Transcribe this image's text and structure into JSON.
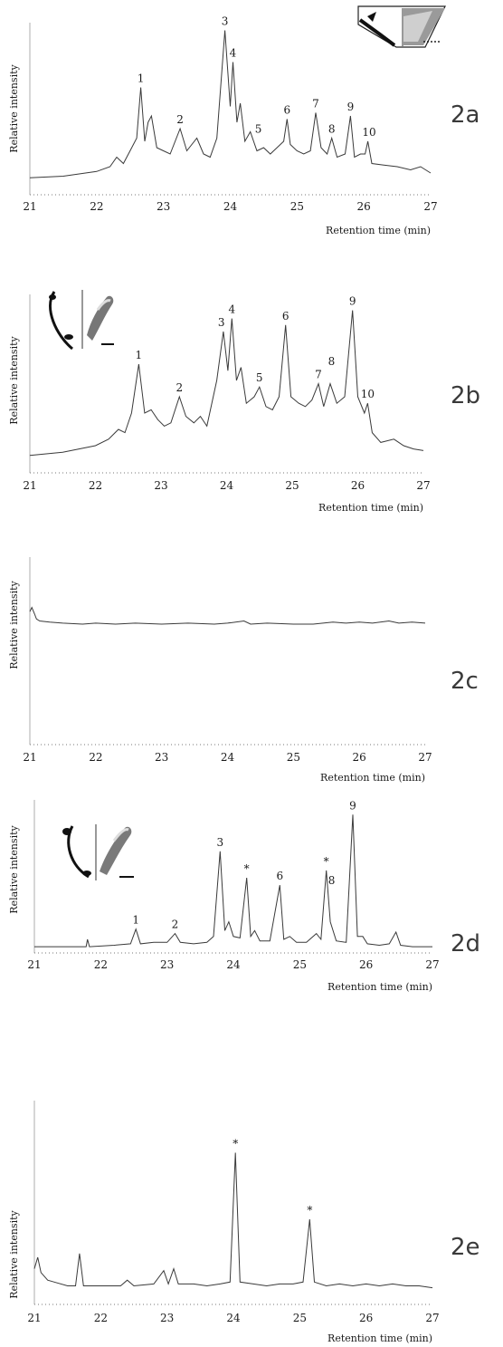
{
  "chart_data": [
    {
      "type": "line",
      "panel_label": "2a",
      "xlabel": "Retention time (min)",
      "ylabel": "Relative intensity",
      "xlim": [
        21,
        27
      ],
      "xticks": [
        "21",
        "22",
        "23",
        "24",
        "25",
        "26",
        "27"
      ],
      "series": [
        {
          "points": [
            [
              21.0,
              0.05
            ],
            [
              21.5,
              0.06
            ],
            [
              22.0,
              0.09
            ],
            [
              22.2,
              0.12
            ],
            [
              22.3,
              0.18
            ],
            [
              22.4,
              0.14
            ],
            [
              22.5,
              0.22
            ],
            [
              22.6,
              0.3
            ],
            [
              22.66,
              0.62
            ],
            [
              22.72,
              0.28
            ],
            [
              22.77,
              0.4
            ],
            [
              22.82,
              0.44
            ],
            [
              22.9,
              0.24
            ],
            [
              23.0,
              0.22
            ],
            [
              23.1,
              0.2
            ],
            [
              23.25,
              0.36
            ],
            [
              23.35,
              0.22
            ],
            [
              23.5,
              0.3
            ],
            [
              23.6,
              0.2
            ],
            [
              23.7,
              0.18
            ],
            [
              23.8,
              0.3
            ],
            [
              23.92,
              0.98
            ],
            [
              24.0,
              0.5
            ],
            [
              24.04,
              0.78
            ],
            [
              24.1,
              0.4
            ],
            [
              24.15,
              0.52
            ],
            [
              24.22,
              0.28
            ],
            [
              24.3,
              0.34
            ],
            [
              24.4,
              0.22
            ],
            [
              24.5,
              0.24
            ],
            [
              24.6,
              0.2
            ],
            [
              24.7,
              0.24
            ],
            [
              24.8,
              0.28
            ],
            [
              24.85,
              0.42
            ],
            [
              24.9,
              0.26
            ],
            [
              25.0,
              0.22
            ],
            [
              25.1,
              0.2
            ],
            [
              25.2,
              0.22
            ],
            [
              25.28,
              0.46
            ],
            [
              25.36,
              0.24
            ],
            [
              25.45,
              0.2
            ],
            [
              25.52,
              0.3
            ],
            [
              25.6,
              0.18
            ],
            [
              25.72,
              0.2
            ],
            [
              25.8,
              0.44
            ],
            [
              25.86,
              0.18
            ],
            [
              25.95,
              0.2
            ],
            [
              26.02,
              0.2
            ],
            [
              26.06,
              0.28
            ],
            [
              26.12,
              0.14
            ],
            [
              26.3,
              0.13
            ],
            [
              26.5,
              0.12
            ],
            [
              26.7,
              0.1
            ],
            [
              26.85,
              0.12
            ],
            [
              27.0,
              0.08
            ]
          ]
        }
      ],
      "peak_labels": [
        {
          "label": "1",
          "x": 22.66,
          "y": 0.62
        },
        {
          "label": "2",
          "x": 23.25,
          "y": 0.36
        },
        {
          "label": "3",
          "x": 23.92,
          "y": 0.98
        },
        {
          "label": "4",
          "x": 24.04,
          "y": 0.78
        },
        {
          "label": "5",
          "x": 24.42,
          "y": 0.3
        },
        {
          "label": "6",
          "x": 24.85,
          "y": 0.42
        },
        {
          "label": "7",
          "x": 25.28,
          "y": 0.46
        },
        {
          "label": "8",
          "x": 25.52,
          "y": 0.3
        },
        {
          "label": "9",
          "x": 25.8,
          "y": 0.44
        },
        {
          "label": "10",
          "x": 26.08,
          "y": 0.28
        }
      ]
    },
    {
      "type": "line",
      "panel_label": "2b",
      "xlabel": "Retention time (min)",
      "ylabel": "Relative intensity",
      "xlim": [
        21,
        27
      ],
      "xticks": [
        "21",
        "22",
        "23",
        "24",
        "25",
        "26",
        "27"
      ],
      "series": [
        {
          "points": [
            [
              21.0,
              0.04
            ],
            [
              21.5,
              0.06
            ],
            [
              22.0,
              0.1
            ],
            [
              22.2,
              0.14
            ],
            [
              22.35,
              0.2
            ],
            [
              22.45,
              0.18
            ],
            [
              22.55,
              0.3
            ],
            [
              22.66,
              0.6
            ],
            [
              22.75,
              0.3
            ],
            [
              22.85,
              0.32
            ],
            [
              22.95,
              0.26
            ],
            [
              23.05,
              0.22
            ],
            [
              23.15,
              0.24
            ],
            [
              23.28,
              0.4
            ],
            [
              23.38,
              0.28
            ],
            [
              23.5,
              0.24
            ],
            [
              23.6,
              0.28
            ],
            [
              23.7,
              0.22
            ],
            [
              23.85,
              0.5
            ],
            [
              23.95,
              0.8
            ],
            [
              24.02,
              0.56
            ],
            [
              24.08,
              0.88
            ],
            [
              24.15,
              0.5
            ],
            [
              24.22,
              0.58
            ],
            [
              24.3,
              0.36
            ],
            [
              24.42,
              0.4
            ],
            [
              24.5,
              0.46
            ],
            [
              24.6,
              0.34
            ],
            [
              24.7,
              0.32
            ],
            [
              24.8,
              0.4
            ],
            [
              24.9,
              0.84
            ],
            [
              24.98,
              0.4
            ],
            [
              25.1,
              0.36
            ],
            [
              25.2,
              0.34
            ],
            [
              25.3,
              0.38
            ],
            [
              25.4,
              0.48
            ],
            [
              25.48,
              0.34
            ],
            [
              25.58,
              0.48
            ],
            [
              25.68,
              0.36
            ],
            [
              25.8,
              0.4
            ],
            [
              25.92,
              0.93
            ],
            [
              26.0,
              0.4
            ],
            [
              26.1,
              0.3
            ],
            [
              26.15,
              0.36
            ],
            [
              26.22,
              0.18
            ],
            [
              26.35,
              0.12
            ],
            [
              26.55,
              0.14
            ],
            [
              26.7,
              0.1
            ],
            [
              26.85,
              0.08
            ],
            [
              27.0,
              0.07
            ]
          ]
        }
      ],
      "peak_labels": [
        {
          "label": "1",
          "x": 22.66,
          "y": 0.6
        },
        {
          "label": "2",
          "x": 23.28,
          "y": 0.4
        },
        {
          "label": "3",
          "x": 23.92,
          "y": 0.8
        },
        {
          "label": "4",
          "x": 24.08,
          "y": 0.88
        },
        {
          "label": "5",
          "x": 24.5,
          "y": 0.46
        },
        {
          "label": "6",
          "x": 24.9,
          "y": 0.84
        },
        {
          "label": "7",
          "x": 25.4,
          "y": 0.48
        },
        {
          "label": "8",
          "x": 25.6,
          "y": 0.56
        },
        {
          "label": "9",
          "x": 25.92,
          "y": 0.93
        },
        {
          "label": "10",
          "x": 26.15,
          "y": 0.36
        }
      ]
    },
    {
      "type": "line",
      "panel_label": "2c",
      "xlabel": "Retention time (min)",
      "ylabel": "Relative intensity",
      "xlim": [
        21,
        27
      ],
      "xticks": [
        "21",
        "22",
        "23",
        "24",
        "25",
        "26",
        "27"
      ],
      "series": [
        {
          "points": [
            [
              21.0,
              0.52
            ],
            [
              21.03,
              0.56
            ],
            [
              21.07,
              0.5
            ],
            [
              21.1,
              0.45
            ],
            [
              21.15,
              0.43
            ],
            [
              21.3,
              0.42
            ],
            [
              21.5,
              0.41
            ],
            [
              21.8,
              0.4
            ],
            [
              22.0,
              0.41
            ],
            [
              22.3,
              0.4
            ],
            [
              22.6,
              0.41
            ],
            [
              23.0,
              0.4
            ],
            [
              23.4,
              0.41
            ],
            [
              23.8,
              0.4
            ],
            [
              24.0,
              0.41
            ],
            [
              24.25,
              0.43
            ],
            [
              24.35,
              0.4
            ],
            [
              24.6,
              0.41
            ],
            [
              25.0,
              0.4
            ],
            [
              25.3,
              0.4
            ],
            [
              25.6,
              0.42
            ],
            [
              25.8,
              0.41
            ],
            [
              26.0,
              0.42
            ],
            [
              26.2,
              0.41
            ],
            [
              26.45,
              0.43
            ],
            [
              26.6,
              0.41
            ],
            [
              26.8,
              0.42
            ],
            [
              27.0,
              0.41
            ]
          ]
        }
      ],
      "peak_labels": []
    },
    {
      "type": "line",
      "panel_label": "2d",
      "xlabel": "Retention time (min)",
      "ylabel": "Relative intensity",
      "xlim": [
        21,
        27
      ],
      "xticks": [
        "21",
        "22",
        "23",
        "24",
        "25",
        "26",
        "27"
      ],
      "series": [
        {
          "points": [
            [
              21.0,
              0.03
            ],
            [
              21.5,
              0.03
            ],
            [
              21.78,
              0.03
            ],
            [
              21.8,
              0.08
            ],
            [
              21.83,
              0.03
            ],
            [
              22.2,
              0.04
            ],
            [
              22.45,
              0.05
            ],
            [
              22.53,
              0.15
            ],
            [
              22.6,
              0.05
            ],
            [
              22.8,
              0.06
            ],
            [
              23.0,
              0.06
            ],
            [
              23.12,
              0.12
            ],
            [
              23.2,
              0.06
            ],
            [
              23.4,
              0.05
            ],
            [
              23.6,
              0.06
            ],
            [
              23.7,
              0.1
            ],
            [
              23.8,
              0.68
            ],
            [
              23.87,
              0.14
            ],
            [
              23.93,
              0.2
            ],
            [
              24.0,
              0.1
            ],
            [
              24.1,
              0.09
            ],
            [
              24.2,
              0.5
            ],
            [
              24.26,
              0.1
            ],
            [
              24.32,
              0.14
            ],
            [
              24.4,
              0.07
            ],
            [
              24.55,
              0.07
            ],
            [
              24.7,
              0.45
            ],
            [
              24.76,
              0.08
            ],
            [
              24.85,
              0.1
            ],
            [
              24.95,
              0.06
            ],
            [
              25.1,
              0.06
            ],
            [
              25.25,
              0.12
            ],
            [
              25.32,
              0.08
            ],
            [
              25.4,
              0.55
            ],
            [
              25.46,
              0.2
            ],
            [
              25.55,
              0.07
            ],
            [
              25.7,
              0.06
            ],
            [
              25.8,
              0.93
            ],
            [
              25.87,
              0.1
            ],
            [
              25.95,
              0.1
            ],
            [
              26.02,
              0.05
            ],
            [
              26.2,
              0.04
            ],
            [
              26.35,
              0.05
            ],
            [
              26.45,
              0.13
            ],
            [
              26.52,
              0.04
            ],
            [
              26.7,
              0.03
            ],
            [
              27.0,
              0.03
            ]
          ]
        }
      ],
      "peak_labels": [
        {
          "label": "1",
          "x": 22.53,
          "y": 0.15
        },
        {
          "label": "2",
          "x": 23.12,
          "y": 0.12
        },
        {
          "label": "3",
          "x": 23.8,
          "y": 0.68
        },
        {
          "label": "*",
          "x": 24.2,
          "y": 0.5
        },
        {
          "label": "6",
          "x": 24.7,
          "y": 0.45
        },
        {
          "label": "*",
          "x": 25.4,
          "y": 0.55
        },
        {
          "label": "8",
          "x": 25.48,
          "y": 0.42
        },
        {
          "label": "9",
          "x": 25.8,
          "y": 0.93
        }
      ]
    },
    {
      "type": "line",
      "panel_label": "2e",
      "xlabel": "Retention time (min)",
      "ylabel": "Relative intensity",
      "xlim": [
        21,
        27
      ],
      "xticks": [
        "21",
        "22",
        "23",
        "24",
        "25",
        "26",
        "27"
      ],
      "series": [
        {
          "points": [
            [
              21.0,
              0.14
            ],
            [
              21.05,
              0.2
            ],
            [
              21.1,
              0.12
            ],
            [
              21.2,
              0.08
            ],
            [
              21.3,
              0.07
            ],
            [
              21.5,
              0.05
            ],
            [
              21.62,
              0.05
            ],
            [
              21.68,
              0.22
            ],
            [
              21.74,
              0.05
            ],
            [
              22.0,
              0.05
            ],
            [
              22.3,
              0.05
            ],
            [
              22.4,
              0.08
            ],
            [
              22.5,
              0.05
            ],
            [
              22.8,
              0.06
            ],
            [
              22.95,
              0.13
            ],
            [
              23.02,
              0.06
            ],
            [
              23.1,
              0.14
            ],
            [
              23.17,
              0.06
            ],
            [
              23.4,
              0.06
            ],
            [
              23.6,
              0.05
            ],
            [
              23.8,
              0.06
            ],
            [
              23.95,
              0.07
            ],
            [
              24.03,
              0.75
            ],
            [
              24.1,
              0.07
            ],
            [
              24.3,
              0.06
            ],
            [
              24.5,
              0.05
            ],
            [
              24.7,
              0.06
            ],
            [
              24.9,
              0.06
            ],
            [
              25.05,
              0.07
            ],
            [
              25.15,
              0.4
            ],
            [
              25.22,
              0.07
            ],
            [
              25.4,
              0.05
            ],
            [
              25.6,
              0.06
            ],
            [
              25.8,
              0.05
            ],
            [
              26.0,
              0.06
            ],
            [
              26.2,
              0.05
            ],
            [
              26.4,
              0.06
            ],
            [
              26.6,
              0.05
            ],
            [
              26.8,
              0.05
            ],
            [
              27.0,
              0.04
            ]
          ]
        }
      ],
      "peak_labels": [
        {
          "label": "*",
          "x": 24.03,
          "y": 0.75
        },
        {
          "label": "*",
          "x": 25.15,
          "y": 0.4
        }
      ]
    }
  ]
}
